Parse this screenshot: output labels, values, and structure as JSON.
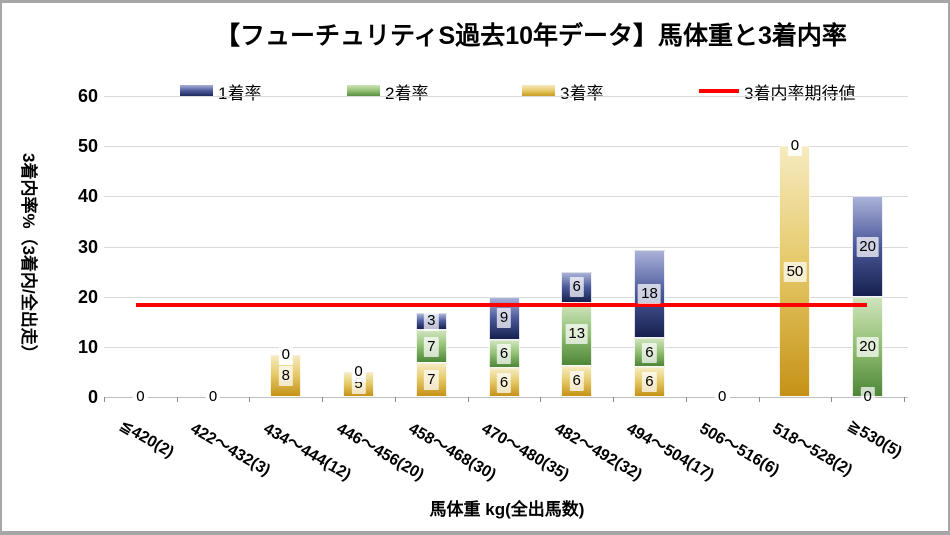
{
  "window": {
    "background": "#ffffff",
    "border_color": "#a6a6a6"
  },
  "chart_data": {
    "type": "bar",
    "subtype": "stacked-vertical",
    "title": "【フューチュリティS過去10年データ】馬体重と3着内率",
    "xlabel": "馬体重 kg(全出馬数)",
    "ylabel": "3着内率%（3着内/全出走）",
    "ylim": [
      0,
      60
    ],
    "yticks": [
      0,
      10,
      20,
      30,
      40,
      50,
      60
    ],
    "grid": true,
    "gridline_color": "#d9d9d9",
    "legend_position": "top",
    "categories": [
      "≦420(2)",
      "422～432(3)",
      "434～444(12)",
      "446～456(20)",
      "458～468(30)",
      "470～480(35)",
      "482～492(32)",
      "494～504(17)",
      "506～516(6)",
      "518～528(2)",
      "≧530(5)"
    ],
    "stack_order_bottom_to_top": [
      "3着率",
      "2着率",
      "1着率"
    ],
    "series": [
      {
        "key": "rank3",
        "name": "3着率",
        "color_top": "#f6ebc0",
        "color_mid": "#e5c867",
        "color_bottom": "#c59217",
        "values": [
          0,
          0,
          8.3,
          5,
          6.7,
          5.7,
          6.25,
          5.9,
          0,
          50,
          0
        ],
        "labels": [
          "0",
          "0",
          "8",
          "5",
          "7",
          "6",
          "6",
          "6",
          "0",
          "50",
          "0"
        ]
      },
      {
        "key": "rank2",
        "name": "2着率",
        "color_top": "#cfe4bd",
        "color_mid": "#93c075",
        "color_bottom": "#4e8637",
        "values": [
          0,
          0,
          0,
          0,
          6.7,
          5.7,
          12.5,
          5.9,
          0,
          0,
          20
        ],
        "labels": [
          "0",
          "0",
          "0",
          "0",
          "7",
          "6",
          "13",
          "6",
          "0",
          "0",
          "20"
        ]
      },
      {
        "key": "rank1",
        "name": "1着率",
        "color_top": "#aab2d9",
        "color_mid": "#4d5a9b",
        "color_bottom": "#16204f",
        "values": [
          0,
          0,
          0,
          0,
          3.3,
          8.6,
          6.25,
          17.6,
          0,
          0,
          20
        ],
        "labels": [
          "0",
          "0",
          "0",
          "0",
          "3",
          "9",
          "6",
          "18",
          "0",
          "0",
          "20"
        ]
      }
    ],
    "expected_line": {
      "name": "3着内率期待値",
      "value": 18.3,
      "color": "#ff0000"
    }
  },
  "legend": {
    "items": [
      {
        "label": "1着率",
        "swatch": "rank1"
      },
      {
        "label": "2着率",
        "swatch": "rank2"
      },
      {
        "label": "3着率",
        "swatch": "rank3"
      },
      {
        "label": "3着内率期待値",
        "swatch": "line"
      }
    ]
  }
}
